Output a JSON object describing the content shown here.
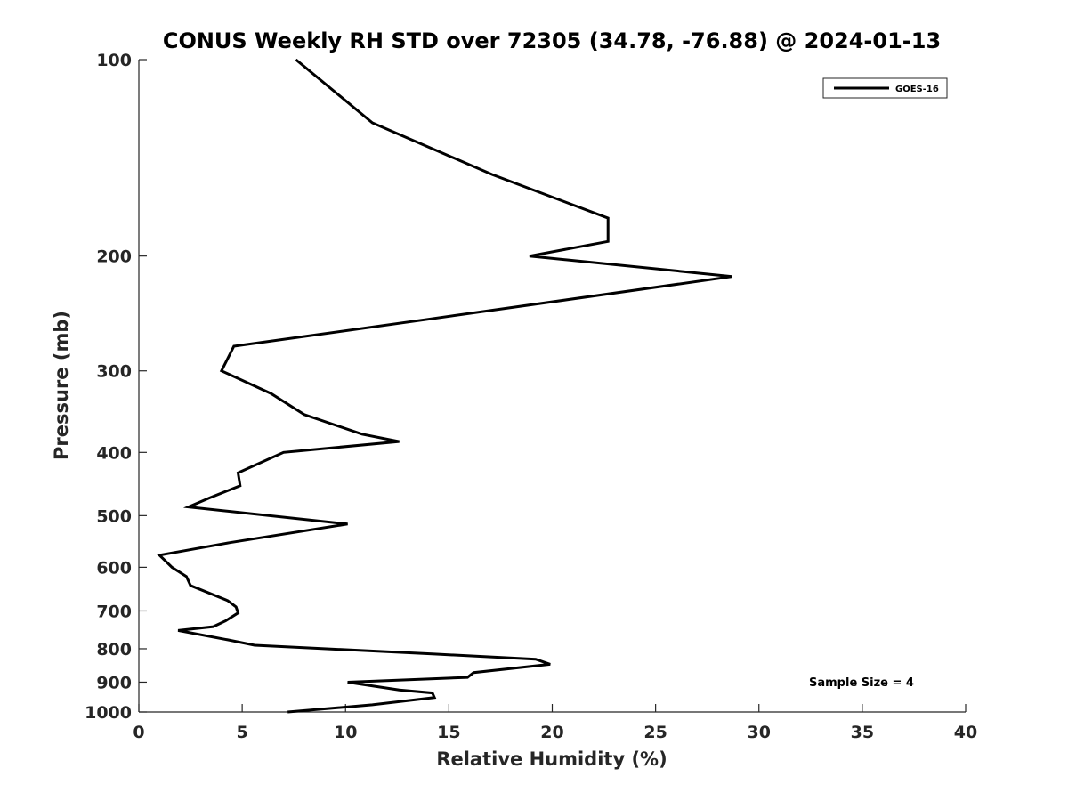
{
  "chart_data": {
    "type": "line",
    "title": "CONUS Weekly RH STD over 72305 (34.78, -76.88) @ 2024-01-13",
    "xlabel": "Relative Humidity (%)",
    "ylabel": "Pressure (mb)",
    "xlim": [
      0,
      40
    ],
    "ylim": [
      100,
      1000
    ],
    "y_scale": "log",
    "y_reversed": true,
    "grid": false,
    "legend_position": "top-right",
    "x_ticks": [
      "0",
      "5",
      "10",
      "15",
      "20",
      "25",
      "30",
      "35",
      "40"
    ],
    "y_ticks": [
      "100",
      "200",
      "300",
      "400",
      "500",
      "600",
      "700",
      "800",
      "900",
      "1000"
    ],
    "annotation": "Sample Size = 4",
    "series": [
      {
        "name": "GOES-16",
        "color": "#000000",
        "points": [
          [
            7.6,
            100
          ],
          [
            11.3,
            125
          ],
          [
            17.1,
            150
          ],
          [
            22.7,
            175
          ],
          [
            22.7,
            190
          ],
          [
            18.9,
            200
          ],
          [
            28.7,
            215
          ],
          [
            14.0,
            250
          ],
          [
            4.6,
            275
          ],
          [
            4.0,
            300
          ],
          [
            6.4,
            325
          ],
          [
            8.0,
            350
          ],
          [
            10.8,
            375
          ],
          [
            12.6,
            385
          ],
          [
            7.0,
            400
          ],
          [
            4.8,
            430
          ],
          [
            4.9,
            450
          ],
          [
            3.4,
            470
          ],
          [
            2.4,
            485
          ],
          [
            10.1,
            515
          ],
          [
            4.4,
            550
          ],
          [
            1.0,
            575
          ],
          [
            1.6,
            600
          ],
          [
            2.3,
            620
          ],
          [
            2.5,
            640
          ],
          [
            4.3,
            675
          ],
          [
            4.7,
            690
          ],
          [
            4.8,
            705
          ],
          [
            4.2,
            725
          ],
          [
            3.6,
            740
          ],
          [
            1.9,
            750
          ],
          [
            4.3,
            775
          ],
          [
            5.6,
            790
          ],
          [
            14.3,
            815
          ],
          [
            19.2,
            830
          ],
          [
            19.9,
            845
          ],
          [
            16.2,
            870
          ],
          [
            15.9,
            885
          ],
          [
            10.1,
            900
          ],
          [
            12.6,
            925
          ],
          [
            14.2,
            935
          ],
          [
            14.3,
            950
          ],
          [
            11.3,
            975
          ],
          [
            7.2,
            1000
          ]
        ]
      }
    ]
  }
}
